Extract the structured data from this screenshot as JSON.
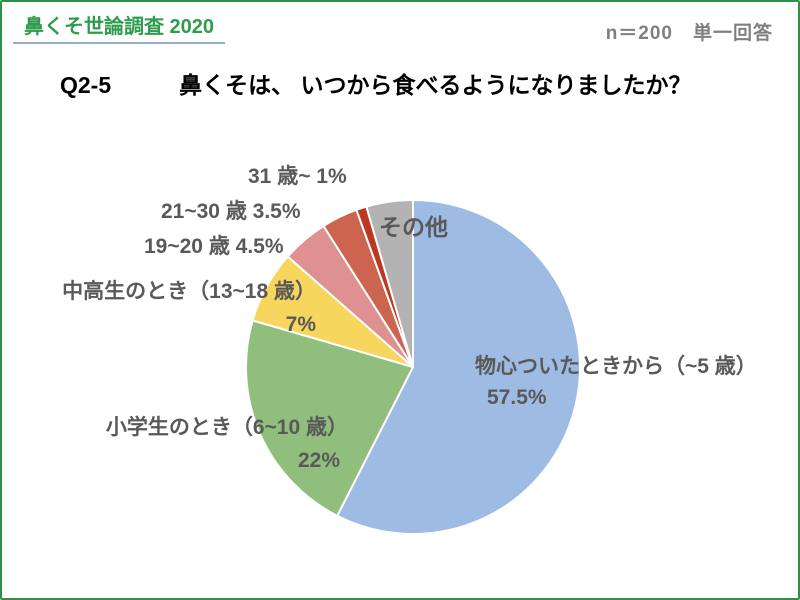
{
  "page": {
    "border_color": "#2E9147",
    "background": "#FFFFFF"
  },
  "header": {
    "title": "鼻くそ世論調査 2020",
    "title_color": "#2E9B4E",
    "underline_color": "#95AECE",
    "sample_info": "n＝200　単一回答",
    "sample_info_color": "#7F7F7F"
  },
  "question": {
    "number": "Q2-5",
    "text": "鼻くそは、 いつから食べるようになりましたか？"
  },
  "chart_data": {
    "type": "pie",
    "title": "鼻くそは、 いつから食べるようになりましたか？",
    "start_angle_deg": 0,
    "direction": "clockwise",
    "total": 100,
    "label_color": "#595959",
    "slice_border_color": "#FFFFFF",
    "segments": [
      {
        "label": "物心ついたときから（~5 歳）",
        "value": 57.5,
        "color": "#9DBBE3",
        "callout_line1": "物心ついたときから（~5 歳）",
        "callout_line2": "57.5%"
      },
      {
        "label": "小学生のとき（6~10 歳）",
        "value": 22,
        "color": "#8FBE7D",
        "callout_line1": "小学生のとき（6~10 歳）",
        "callout_line2": "22%"
      },
      {
        "label": "中高生のとき（13~18 歳）",
        "value": 7,
        "color": "#F7D65E",
        "callout_line1": "中高生のとき（13~18 歳）",
        "callout_line2": "7%"
      },
      {
        "label": "19~20 歳",
        "value": 4.5,
        "color": "#DE9190",
        "callout_line1": "19~20 歳 4.5%"
      },
      {
        "label": "21~30 歳",
        "value": 3.5,
        "color": "#CC6450",
        "callout_line1": "21~30 歳 3.5%"
      },
      {
        "label": "31 歳~",
        "value": 1,
        "color": "#BE3723",
        "callout_line1": "31 歳~ 1%"
      },
      {
        "label": "その他",
        "value": 4.5,
        "color": "#B3B3B3",
        "callout_line1": "その他"
      }
    ]
  }
}
